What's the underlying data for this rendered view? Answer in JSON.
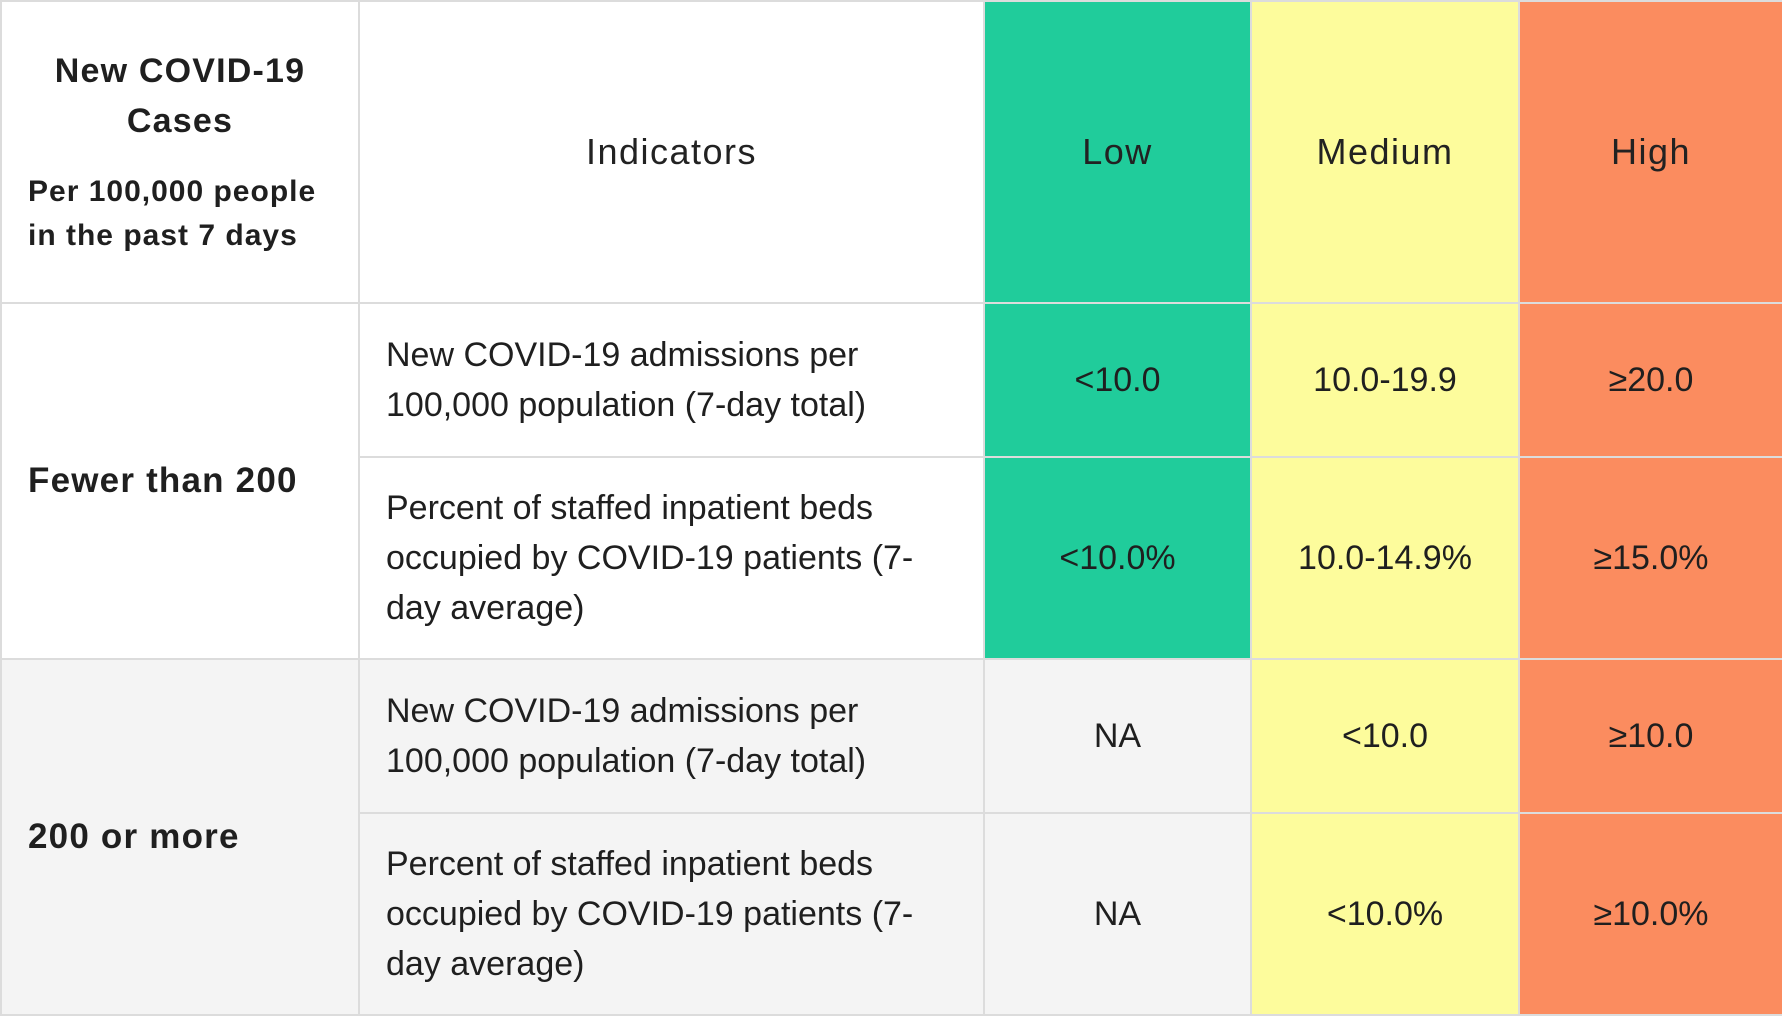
{
  "header": {
    "cases_title": "New COVID-19 Cases",
    "cases_subtitle": "Per 100,000 people in the past 7 days",
    "indicators": "Indicators",
    "low": "Low",
    "medium": "Medium",
    "high": "High"
  },
  "colors": {
    "low": "#20cc9b",
    "medium": "#fdfc9c",
    "high": "#fb8c5f",
    "na_background": "#f4f4f4"
  },
  "groups": [
    {
      "label": "Fewer than 200",
      "rows": [
        {
          "indicator": "New COVID-19 admissions per 100,000 population (7-day total)",
          "low": "<10.0",
          "medium": "10.0-19.9",
          "high": "≥20.0"
        },
        {
          "indicator": "Percent of staffed inpatient beds occupied by COVID-19 patients (7-day average)",
          "low": "<10.0%",
          "medium": "10.0-14.9%",
          "high": "≥15.0%"
        }
      ]
    },
    {
      "label": "200 or more",
      "rows": [
        {
          "indicator": "New COVID-19 admissions per 100,000 population (7-day total)",
          "low": "NA",
          "medium": "<10.0",
          "high": "≥10.0"
        },
        {
          "indicator": "Percent of staffed inpatient beds occupied by COVID-19 patients (7-day average)",
          "low": "NA",
          "medium": "<10.0%",
          "high": "≥10.0%"
        }
      ]
    }
  ]
}
